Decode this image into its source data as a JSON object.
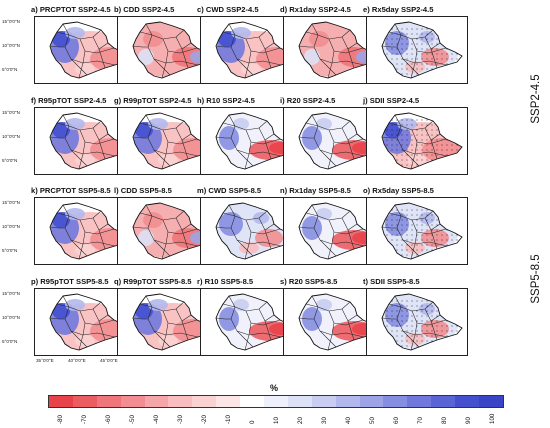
{
  "panels": [
    {
      "title": "a) PRCPTOT  SSP2-4.5",
      "pattern": "wetwest"
    },
    {
      "title": "b) CDD  SSP2-4.5",
      "pattern": "dryall"
    },
    {
      "title": "c) CWD  SSP2-4.5",
      "pattern": "wetwest"
    },
    {
      "title": "d) Rx1day  SSP2-4.5",
      "pattern": "dryall"
    },
    {
      "title": "e) Rx5day  SSP2-4.5",
      "pattern": "mixed"
    },
    {
      "title": "f) R95pTOT  SSP2-4.5",
      "pattern": "wetwest"
    },
    {
      "title": "g) R99pTOT  SSP2-4.5",
      "pattern": "wetwest"
    },
    {
      "title": "h) R10  SSP2-4.5",
      "pattern": "dryeast"
    },
    {
      "title": "i) R20  SSP2-4.5",
      "pattern": "dryeast"
    },
    {
      "title": "j) SDII  SSP2-4.5",
      "pattern": "wetwest"
    },
    {
      "title": "k) PRCPTOT  SSP5-8.5",
      "pattern": "wetwest"
    },
    {
      "title": "l) CDD  SSP5-8.5",
      "pattern": "dryall"
    },
    {
      "title": "m) CWD  SSP5-8.5",
      "pattern": "mixed"
    },
    {
      "title": "n) Rx1day  SSP5-8.5",
      "pattern": "dryeast"
    },
    {
      "title": "o) Rx5day  SSP5-8.5",
      "pattern": "mixed"
    },
    {
      "title": "p) R95pTOT  SSP5-8.5",
      "pattern": "wetwest"
    },
    {
      "title": "q) R99pTOT  SSP5-8.5",
      "pattern": "wetwest"
    },
    {
      "title": "r) R10  SSP5-8.5",
      "pattern": "dryeast"
    },
    {
      "title": "s) R20  SSP5-8.5",
      "pattern": "dryeast"
    },
    {
      "title": "t) SDII  SSP5-8.5",
      "pattern": "mixed"
    }
  ],
  "scenario_labels": [
    "SSP2-4.5",
    "SSP5-8.5"
  ],
  "lat_ticks": [
    "15°0'0\"N",
    "10°0'0\"N",
    "5°0'0\"N"
  ],
  "lon_ticks": [
    "35°0'0\"E",
    "40°0'0\"E",
    "45°0'0\"E"
  ],
  "colorbar": {
    "unit": "%",
    "labels": [
      "-80",
      "-70",
      "-60",
      "-50",
      "-40",
      "-30",
      "-20",
      "-10",
      "0",
      "10",
      "20",
      "30",
      "40",
      "50",
      "60",
      "70",
      "80",
      "90",
      "100"
    ],
    "colors": [
      "#e8434a",
      "#ec5d62",
      "#ef767a",
      "#f28e91",
      "#f5a6a8",
      "#f8bdbe",
      "#fad2d2",
      "#fce6e5",
      "#ffffff",
      "#eef0fb",
      "#dde1f6",
      "#c8cdf1",
      "#b2b8ec",
      "#9ca3e6",
      "#868ee1",
      "#7079db",
      "#5a65d5",
      "#4550cf",
      "#3a44c6"
    ]
  }
}
